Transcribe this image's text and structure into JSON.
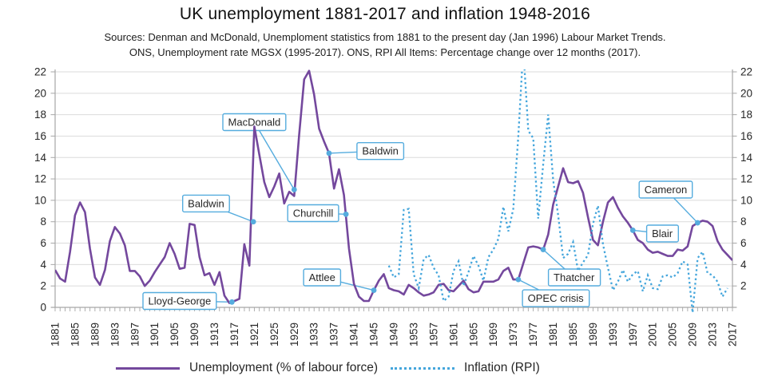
{
  "title": "UK unemployment 1881-2017 and inflation 1948-2016",
  "sources_line1": "Sources: Denman and McDonald, Unemploment statistics from 1881 to the present day (Jan 1996) Labour Market Trends.",
  "sources_line2": "ONS, Unemployment rate MGSX (1995-2017). ONS, RPI All Items: Percentage change over 12 months (2017).",
  "colors": {
    "unemployment": "#74489D",
    "inflation": "#45A6DC",
    "annotation": "#55ACDE",
    "grid": "#DBDBDB",
    "axis": "#A6A6A6",
    "tick_label": "#262626"
  },
  "chart_data": {
    "type": "line",
    "title": "UK unemployment 1881-2017 and inflation 1948-2016",
    "xlabel": "",
    "ylabel": "",
    "x_range": [
      1881,
      2017
    ],
    "ylim": [
      0,
      22
    ],
    "y_tick_step": 2,
    "x_tick_step": 4,
    "grid": true,
    "legend_position": "bottom",
    "left_axis_ticks": [
      0,
      2,
      4,
      6,
      8,
      10,
      12,
      14,
      16,
      18,
      20,
      22
    ],
    "right_axis_ticks": [
      2,
      4,
      6,
      8,
      10,
      12,
      14,
      16,
      18,
      20,
      22
    ],
    "series": [
      {
        "name": "Unemployment (% of labour force)",
        "style": "solid",
        "color": "#74489D",
        "x_start": 1881,
        "values": [
          3.5,
          2.7,
          2.4,
          5.2,
          8.6,
          9.8,
          8.9,
          5.5,
          2.8,
          2.1,
          3.5,
          6.2,
          7.5,
          6.9,
          5.8,
          3.4,
          3.4,
          2.9,
          2.0,
          2.5,
          3.3,
          4.0,
          4.7,
          6.0,
          5.0,
          3.6,
          3.7,
          7.8,
          7.7,
          4.7,
          3.0,
          3.2,
          2.1,
          3.3,
          1.1,
          0.4,
          0.6,
          0.8,
          5.9,
          3.9,
          16.9,
          14.3,
          11.7,
          10.3,
          11.3,
          12.5,
          9.7,
          10.8,
          10.4,
          16.1,
          21.3,
          22.1,
          19.9,
          16.7,
          15.5,
          14.4,
          11.1,
          12.9,
          10.5,
          5.5,
          2.2,
          1.0,
          0.6,
          0.6,
          1.6,
          2.5,
          3.1,
          1.8,
          1.6,
          1.5,
          1.2,
          2.1,
          1.8,
          1.4,
          1.1,
          1.2,
          1.4,
          2.1,
          2.2,
          1.6,
          1.5,
          2.0,
          2.5,
          1.7,
          1.4,
          1.5,
          2.4,
          2.4,
          2.4,
          2.6,
          3.4,
          3.7,
          2.6,
          2.6,
          4.1,
          5.6,
          5.7,
          5.6,
          5.4,
          6.8,
          9.6,
          11.3,
          13.0,
          11.7,
          11.6,
          11.8,
          10.7,
          8.4,
          6.3,
          5.8,
          8.0,
          9.8,
          10.3,
          9.3,
          8.5,
          7.9,
          7.2,
          6.3,
          6.0,
          5.4,
          5.1,
          5.2,
          5.0,
          4.8,
          4.8,
          5.4,
          5.3,
          5.7,
          7.6,
          7.9,
          8.1,
          8.0,
          7.6,
          6.2,
          5.4,
          4.9,
          4.4
        ]
      },
      {
        "name": "Inflation (RPI)",
        "style": "dotted",
        "color": "#45A6DC",
        "x_start": 1948,
        "values": [
          3.9,
          2.8,
          3.1,
          9.1,
          9.2,
          3.1,
          1.8,
          4.5,
          4.9,
          3.7,
          3.0,
          0.6,
          1.0,
          3.4,
          4.3,
          2.0,
          3.3,
          4.8,
          3.9,
          2.5,
          4.7,
          5.4,
          6.4,
          9.4,
          7.1,
          9.2,
          16.0,
          24.2,
          16.5,
          15.8,
          8.3,
          13.4,
          18.0,
          11.9,
          8.6,
          4.6,
          5.0,
          6.1,
          3.4,
          4.2,
          4.9,
          7.8,
          9.5,
          5.9,
          3.7,
          1.6,
          2.4,
          3.5,
          2.4,
          3.1,
          3.4,
          1.5,
          3.0,
          1.8,
          1.7,
          2.9,
          3.0,
          2.8,
          3.2,
          4.3,
          4.0,
          -0.5,
          4.6,
          5.2,
          3.2,
          3.0,
          2.4,
          1.0,
          1.8
        ]
      }
    ],
    "annotations": [
      {
        "label": "Lloyd-George",
        "point": {
          "year": 1916.5,
          "value": 0.5
        },
        "box": {
          "year": 1906.0,
          "value": 0.6
        }
      },
      {
        "label": "Baldwin",
        "point": {
          "year": 1920.8,
          "value": 8.0
        },
        "box": {
          "year": 1911.3,
          "value": 9.7
        }
      },
      {
        "label": "MacDonald",
        "point": {
          "year": 1929.0,
          "value": 11.0
        },
        "box": {
          "year": 1921.0,
          "value": 17.3
        }
      },
      {
        "label": "Churchill",
        "point": {
          "year": 1939.4,
          "value": 8.7
        },
        "box": {
          "year": 1932.8,
          "value": 8.8
        }
      },
      {
        "label": "Baldwin",
        "point": {
          "year": 1936.0,
          "value": 14.4
        },
        "box": {
          "year": 1946.3,
          "value": 14.6
        }
      },
      {
        "label": "Attlee",
        "point": {
          "year": 1945.0,
          "value": 1.6
        },
        "box": {
          "year": 1934.6,
          "value": 2.8
        }
      },
      {
        "label": "OPEC crisis",
        "point": {
          "year": 1974.0,
          "value": 2.6
        },
        "box": {
          "year": 1981.5,
          "value": 0.85
        }
      },
      {
        "label": "Thatcher",
        "point": {
          "year": 1979.0,
          "value": 5.4
        },
        "box": {
          "year": 1985.2,
          "value": 2.8
        }
      },
      {
        "label": "Blair",
        "point": {
          "year": 1997.0,
          "value": 7.2
        },
        "box": {
          "year": 2002.9,
          "value": 6.9
        }
      },
      {
        "label": "Cameron",
        "point": {
          "year": 2010.0,
          "value": 7.9
        },
        "box": {
          "year": 2003.6,
          "value": 11.0
        }
      }
    ]
  }
}
